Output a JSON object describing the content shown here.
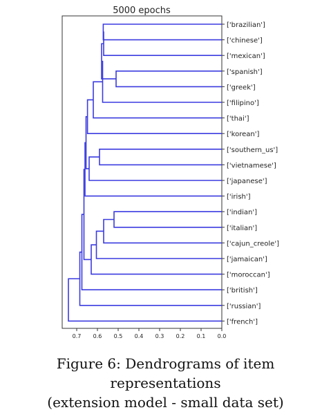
{
  "chart_data": {
    "type": "dendrogram",
    "title": "5000 epochs",
    "orientation": "left",
    "xlim": [
      0.78,
      0.0
    ],
    "xticks": [
      0.7,
      0.6,
      0.5,
      0.4,
      0.3,
      0.2,
      0.1,
      0.0
    ],
    "xtick_labels": [
      "0.7",
      "0.6",
      "0.5",
      "0.4",
      "0.3",
      "0.2",
      "0.1",
      "0.0"
    ],
    "line_color": "#3a3ae0",
    "leaves": [
      "['brazilian']",
      "['chinese']",
      "['mexican']",
      "['spanish']",
      "['greek']",
      "['filipino']",
      "['thai']",
      "['korean']",
      "['southern_us']",
      "['vietnamese']",
      "['japanese']",
      "['irish']",
      "['indian']",
      "['italian']",
      "['cajun_creole']",
      "['jamaican']",
      "['moroccan']",
      "['british']",
      "['russian']",
      "['french']"
    ],
    "merges": [
      [
        "L0",
        "L1",
        0.572
      ],
      [
        "N0",
        "L2",
        0.57
      ],
      [
        "L3",
        "L4",
        0.51
      ],
      [
        "N1",
        "N2",
        0.58
      ],
      [
        "N3",
        "L5",
        0.575
      ],
      [
        "N4",
        "L6",
        0.62
      ],
      [
        "N5",
        "L7",
        0.648
      ],
      [
        "L8",
        "L9",
        0.59
      ],
      [
        "N7",
        "L10",
        0.64
      ],
      [
        "N6",
        "N8",
        0.655
      ],
      [
        "N9",
        "L11",
        0.66
      ],
      [
        "L12",
        "L13",
        0.52
      ],
      [
        "N11",
        "L14",
        0.57
      ],
      [
        "N12",
        "L15",
        0.605
      ],
      [
        "N13",
        "L16",
        0.63
      ],
      [
        "N10",
        "N14",
        0.665
      ],
      [
        "N15",
        "L17",
        0.675
      ],
      [
        "N16",
        "L18",
        0.685
      ],
      [
        "N17",
        "L19",
        0.74
      ]
    ]
  },
  "caption": {
    "line1": "Figure 6: Dendrograms of item representations",
    "line2": "(extension model - small data set)"
  }
}
